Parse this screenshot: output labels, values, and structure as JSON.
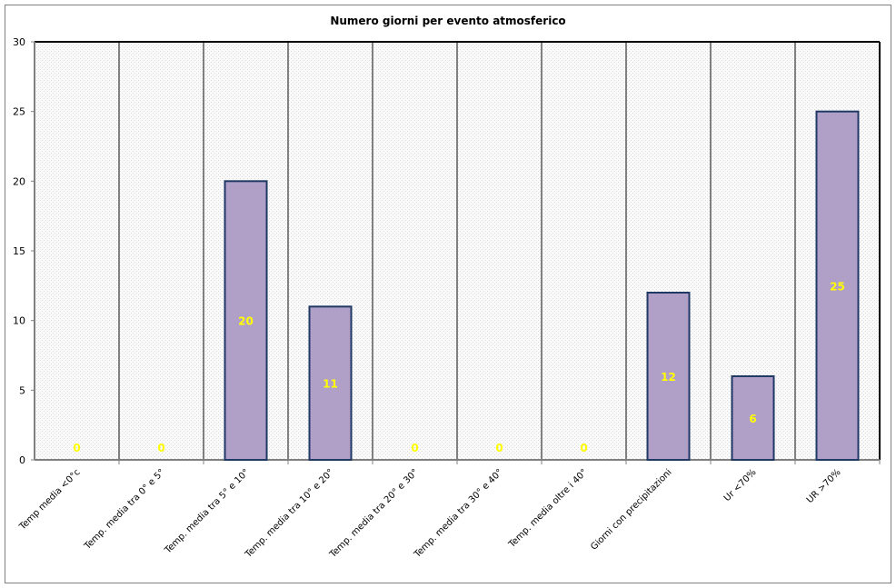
{
  "chart_data": {
    "type": "bar",
    "title": "Numero giorni per evento atmosferico",
    "xlabel": "",
    "ylabel": "",
    "ylim": [
      0,
      30
    ],
    "yticks": [
      0,
      5,
      10,
      15,
      20,
      25,
      30
    ],
    "categories": [
      "Temp media <0°c",
      "Temp. media tra 0° e 5°",
      "Temp. media tra 5° e 10°",
      "Temp. media tra 10° e 20°",
      "Temp. media tra 20° e 30°",
      "Temp. media tra 30° e 40°",
      "Temp. media oltre i 40°",
      "Giorni con precipitazioni",
      "Ur <70%",
      "UR >70%"
    ],
    "values": [
      0,
      0,
      20,
      11,
      0,
      0,
      0,
      12,
      6,
      25
    ],
    "bar_color": "#b0a0c8",
    "bar_border": "#1f3864",
    "label_color": "#ffff00",
    "grid": "vertical"
  }
}
